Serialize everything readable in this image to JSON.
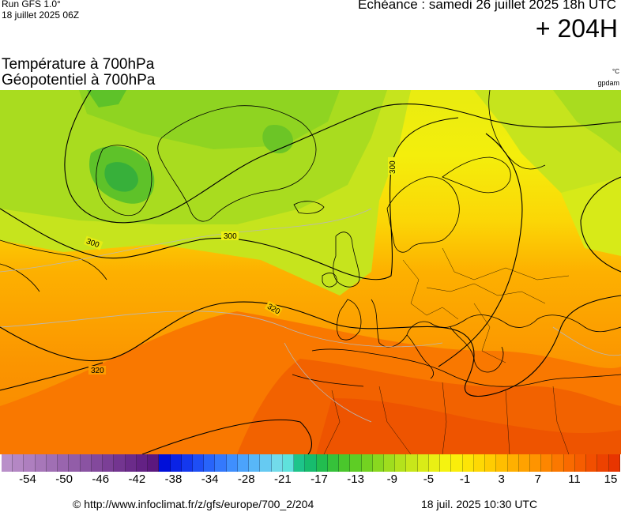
{
  "header": {
    "run_title": "Run GFS 1.0°",
    "run_date": "18 juillet 2025 06Z",
    "echeance": "Echéance : samedi 26 juillet 2025 18h UTC",
    "leadtime": "+ 204H"
  },
  "map": {
    "title_temperature": "Température à 700hPa",
    "title_geopotential": "Géopotentiel à 700hPa",
    "unit_temperature": "°C",
    "unit_geopotential": "gpdam",
    "contour_labels": [
      "300",
      "300",
      "300",
      "320",
      "320"
    ]
  },
  "scale": {
    "colors": [
      "#b98fc9",
      "#b487c4",
      "#ae7fbf",
      "#a777b9",
      "#a06fb4",
      "#9965ae",
      "#925da8",
      "#8a53a2",
      "#83499c",
      "#7b3f96",
      "#733590",
      "#6b2b8a",
      "#632184",
      "#5c187e",
      "#000fd9",
      "#0a23e5",
      "#1438ee",
      "#1e4ef5",
      "#2864fa",
      "#3479fd",
      "#3f8ffe",
      "#4ba3fc",
      "#58b7f8",
      "#66caf2",
      "#72dbea",
      "#5fe2dc",
      "#1ec48a",
      "#17bc6e",
      "#22bd4f",
      "#36c23a",
      "#4ac72c",
      "#5ecd25",
      "#73d221",
      "#89d81f",
      "#9fdd1e",
      "#b4e21c",
      "#c8e71a",
      "#d9ec17",
      "#e9f014",
      "#f5f310",
      "#faee0b",
      "#fde407",
      "#fed804",
      "#ffcc02",
      "#ffbe00",
      "#ffb000",
      "#ffa200",
      "#fe9400",
      "#fd8600",
      "#fb7800",
      "#f96a00",
      "#f65d00",
      "#f24f00",
      "#ed4200",
      "#e83500"
    ],
    "labels": [
      "-54",
      "-50",
      "-46",
      "-42",
      "-38",
      "-34",
      "-28",
      "-21",
      "-17",
      "-13",
      "-9",
      "-5",
      "-1",
      "3",
      "7",
      "11",
      "15"
    ]
  },
  "footer": {
    "url": "© http://www.infoclimat.fr/z/gfs/europe/700_2/204",
    "timestamp": "18 juil. 2025 10:30 UTC"
  }
}
